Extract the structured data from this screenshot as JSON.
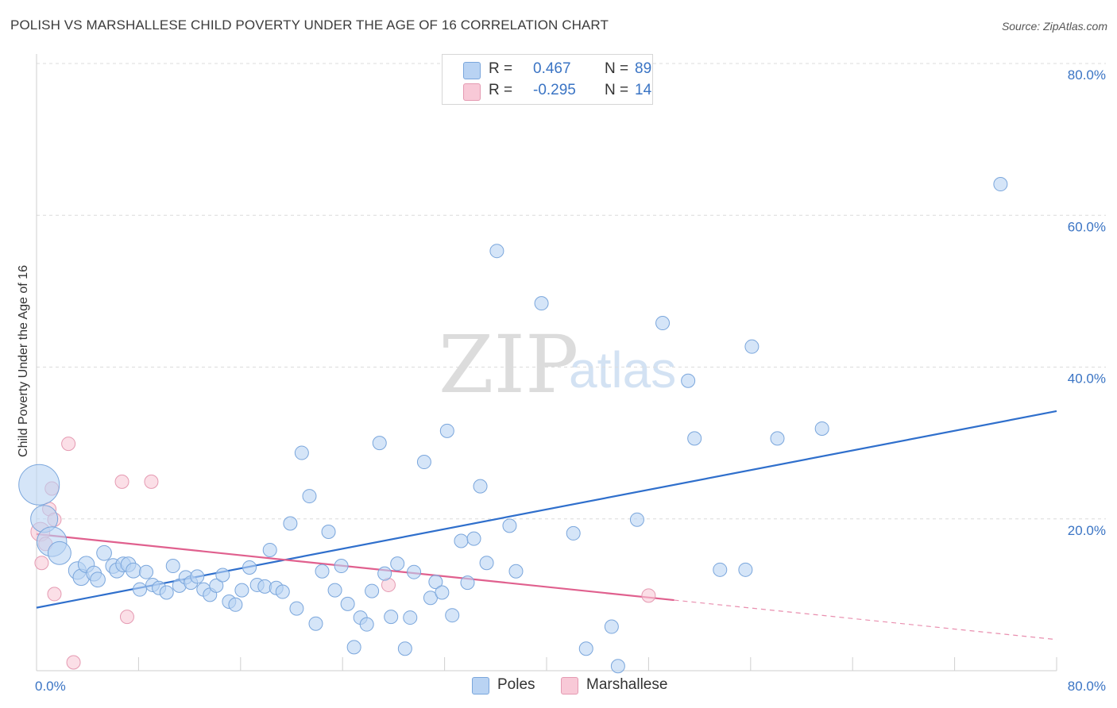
{
  "title": "POLISH VS MARSHALLESE CHILD POVERTY UNDER THE AGE OF 16 CORRELATION CHART",
  "source": "Source: ZipAtlas.com",
  "watermark": {
    "zip": "ZIP",
    "atlas": "atlas"
  },
  "legend": {
    "r_label": "R =",
    "n_label": "N =",
    "rows": [
      {
        "series": "Poles",
        "r": "0.467",
        "n": "89"
      },
      {
        "series": "Marshallese",
        "r": "-0.295",
        "n": "14"
      }
    ]
  },
  "bottom_legend": [
    "Poles",
    "Marshallese"
  ],
  "colors": {
    "poles_fill": "#b9d3f3",
    "poles_stroke": "#7aa6dc",
    "poles_line": "#2f6fcc",
    "marsh_fill": "#f8c9d7",
    "marsh_stroke": "#e59ab2",
    "marsh_line": "#e0608e",
    "tick_text": "#3a74c4"
  },
  "chart_data": {
    "type": "scatter",
    "title": "POLISH VS MARSHALLESE CHILD POVERTY UNDER THE AGE OF 16 CORRELATION CHART",
    "xlabel": "",
    "ylabel": "Child Poverty Under the Age of 16",
    "xlim": [
      0,
      80
    ],
    "ylim": [
      0,
      80
    ],
    "x_tick_labels": [
      "0.0%",
      "80.0%"
    ],
    "y_ticks": [
      20,
      40,
      60,
      80
    ],
    "y_tick_labels": [
      "20.0%",
      "40.0%",
      "60.0%",
      "80.0%"
    ],
    "grid": true,
    "series": [
      {
        "name": "Poles",
        "r": 0.467,
        "n": 89,
        "trend": {
          "x": [
            0,
            80
          ],
          "y": [
            8.3,
            34.2
          ]
        },
        "points": [
          [
            0.2,
            24.5,
            3
          ],
          [
            0.6,
            20.0,
            2
          ],
          [
            1.2,
            17.0,
            2.2
          ],
          [
            1.8,
            15.5,
            1.7
          ],
          [
            3.2,
            13.2,
            1.3
          ],
          [
            3.5,
            12.3,
            1.2
          ],
          [
            3.9,
            14.0,
            1.2
          ],
          [
            4.5,
            12.8,
            1.1
          ],
          [
            4.8,
            12.0,
            1.1
          ],
          [
            5.3,
            15.5,
            1.1
          ],
          [
            6.0,
            13.8,
            1.1
          ],
          [
            6.3,
            13.2,
            1.1
          ],
          [
            6.8,
            14.0,
            1.1
          ],
          [
            7.2,
            14.0,
            1.1
          ],
          [
            7.6,
            13.2,
            1.1
          ],
          [
            8.1,
            10.7,
            1
          ],
          [
            8.6,
            13.0,
            1
          ],
          [
            9.1,
            11.3,
            1
          ],
          [
            9.6,
            10.9,
            1
          ],
          [
            10.2,
            10.3,
            1
          ],
          [
            10.7,
            13.8,
            1
          ],
          [
            11.2,
            11.2,
            1
          ],
          [
            11.7,
            12.3,
            1
          ],
          [
            12.1,
            11.6,
            1
          ],
          [
            12.6,
            12.4,
            1
          ],
          [
            13.1,
            10.7,
            1
          ],
          [
            13.6,
            10.0,
            1
          ],
          [
            14.1,
            11.2,
            1
          ],
          [
            14.6,
            12.6,
            1
          ],
          [
            15.1,
            9.1,
            1
          ],
          [
            15.6,
            8.7,
            1
          ],
          [
            16.1,
            10.6,
            1
          ],
          [
            16.7,
            13.6,
            1
          ],
          [
            17.3,
            11.3,
            1
          ],
          [
            17.9,
            11.1,
            1
          ],
          [
            18.3,
            15.9,
            1
          ],
          [
            18.8,
            10.9,
            1
          ],
          [
            19.3,
            10.4,
            1
          ],
          [
            19.9,
            19.4,
            1
          ],
          [
            20.4,
            8.2,
            1
          ],
          [
            20.8,
            28.7,
            1
          ],
          [
            21.4,
            23.0,
            1
          ],
          [
            21.9,
            6.2,
            1
          ],
          [
            22.4,
            13.1,
            1
          ],
          [
            22.9,
            18.3,
            1
          ],
          [
            23.4,
            10.6,
            1
          ],
          [
            23.9,
            13.8,
            1
          ],
          [
            24.4,
            8.8,
            1
          ],
          [
            24.9,
            3.1,
            1
          ],
          [
            25.4,
            7.0,
            1
          ],
          [
            25.9,
            6.1,
            1
          ],
          [
            26.3,
            10.5,
            1
          ],
          [
            26.9,
            30.0,
            1
          ],
          [
            27.3,
            12.8,
            1
          ],
          [
            27.8,
            7.1,
            1
          ],
          [
            28.3,
            14.1,
            1
          ],
          [
            28.9,
            2.9,
            1
          ],
          [
            29.3,
            7.0,
            1
          ],
          [
            29.6,
            13.0,
            1
          ],
          [
            30.4,
            27.5,
            1
          ],
          [
            30.9,
            9.6,
            1
          ],
          [
            31.3,
            11.7,
            1
          ],
          [
            31.8,
            10.3,
            1
          ],
          [
            32.2,
            31.6,
            1
          ],
          [
            32.6,
            7.3,
            1
          ],
          [
            33.3,
            17.1,
            1
          ],
          [
            33.8,
            11.6,
            1
          ],
          [
            34.3,
            17.4,
            1
          ],
          [
            34.8,
            24.3,
            1
          ],
          [
            35.3,
            14.2,
            1
          ],
          [
            36.1,
            55.3,
            1
          ],
          [
            37.1,
            19.1,
            1
          ],
          [
            37.6,
            13.1,
            1
          ],
          [
            39.6,
            48.4,
            1
          ],
          [
            42.1,
            18.1,
            1
          ],
          [
            43.1,
            2.9,
            1
          ],
          [
            45.1,
            5.8,
            1
          ],
          [
            45.6,
            0.6,
            1
          ],
          [
            47.1,
            19.9,
            1
          ],
          [
            49.1,
            45.8,
            1
          ],
          [
            51.1,
            38.2,
            1
          ],
          [
            51.6,
            30.6,
            1
          ],
          [
            53.6,
            13.3,
            1
          ],
          [
            55.6,
            13.3,
            1
          ],
          [
            56.1,
            42.7,
            1
          ],
          [
            58.1,
            30.6,
            1
          ],
          [
            61.6,
            31.9,
            1
          ],
          [
            75.6,
            64.1,
            1
          ]
        ]
      },
      {
        "name": "Marshallese",
        "r": -0.295,
        "n": 14,
        "trend": {
          "x": [
            0,
            50
          ],
          "y": [
            18.0,
            9.3
          ]
        },
        "trend_dashed": {
          "x": [
            50,
            80
          ],
          "y": [
            9.3,
            4.1
          ]
        },
        "points": [
          [
            0.3,
            18.3,
            1.4
          ],
          [
            0.4,
            14.2,
            1
          ],
          [
            0.7,
            16.7,
            1
          ],
          [
            1.0,
            21.3,
            1
          ],
          [
            1.2,
            24.0,
            1
          ],
          [
            1.4,
            10.1,
            1
          ],
          [
            1.4,
            19.9,
            1
          ],
          [
            2.5,
            29.9,
            1
          ],
          [
            2.9,
            1.1,
            1
          ],
          [
            6.7,
            24.9,
            1
          ],
          [
            7.1,
            7.1,
            1
          ],
          [
            9.0,
            24.9,
            1
          ],
          [
            27.6,
            11.3,
            1
          ],
          [
            48.0,
            9.9,
            1
          ]
        ]
      }
    ]
  }
}
